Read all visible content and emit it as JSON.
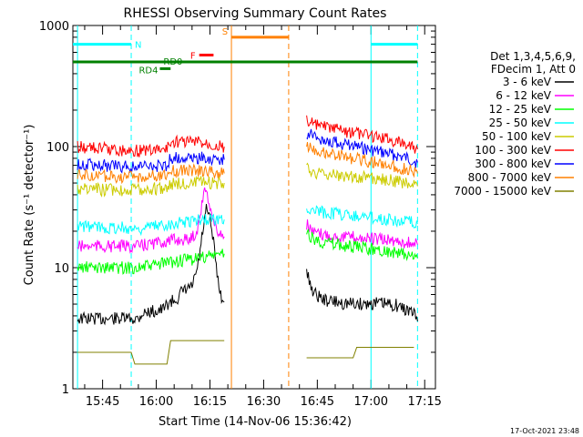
{
  "chart_data": {
    "type": "line",
    "title": "RHESSI Observing Summary Count Rates",
    "xlabel": "Start Time (14-Nov-06 15:36:42)",
    "ylabel": "Count Rate (s⁻¹ detector⁻¹)",
    "yscale": "log",
    "ylim": [
      1,
      1000
    ],
    "xlim_minutes_utc": [
      "15:36:42",
      "17:18:00"
    ],
    "x_ticks": [
      "15:45",
      "16:00",
      "16:15",
      "16:30",
      "16:45",
      "17:00",
      "17:15"
    ],
    "y_ticks": [
      "1",
      "10",
      "100",
      "1000"
    ],
    "legend_header": [
      "Det 1,3,4,5,6,9,",
      "FDecim 1, Att 0"
    ],
    "legend_position": "right",
    "series": [
      {
        "name": "3 - 6 keV",
        "color": "#000000",
        "segments": [
          {
            "x": [
              "15:38",
              "15:55",
              "15:56",
              "16:02",
              "16:03",
              "16:06",
              "16:07",
              "16:10",
              "16:11",
              "16:12",
              "16:13",
              "16:14",
              "16:15",
              "16:16",
              "16:17",
              "16:18",
              "16:19"
            ],
            "y": [
              3.8,
              3.8,
              4.2,
              4.5,
              5.0,
              5.6,
              6.2,
              7.0,
              8.5,
              12,
              20,
              30,
              25,
              16,
              9,
              6,
              5.2
            ]
          },
          {
            "x": [
              "16:42",
              "16:44",
              "16:47",
              "16:52",
              "16:57",
              "17:02",
              "17:07",
              "17:12",
              "17:13"
            ],
            "y": [
              9,
              6.2,
              5.4,
              5.1,
              5.0,
              5.1,
              4.9,
              4.2,
              3.6
            ]
          }
        ]
      },
      {
        "name": "6 - 12 keV",
        "color": "#ff00ff",
        "segments": [
          {
            "x": [
              "15:38",
              "15:55",
              "16:00",
              "16:03",
              "16:06",
              "16:09",
              "16:11",
              "16:12",
              "16:13",
              "16:14",
              "16:15",
              "16:16",
              "16:17",
              "16:18",
              "16:19"
            ],
            "y": [
              15,
              15,
              16,
              16.5,
              17,
              17,
              19,
              24,
              38,
              45,
              32,
              24,
              20,
              19,
              18
            ]
          },
          {
            "x": [
              "16:42",
              "16:44",
              "16:48",
              "16:53",
              "16:58",
              "17:03",
              "17:08",
              "17:13"
            ],
            "y": [
              23,
              19,
              18.5,
              18,
              17.5,
              17,
              16.5,
              15.5
            ]
          }
        ]
      },
      {
        "name": "12 - 25 keV",
        "color": "#00ff00",
        "segments": [
          {
            "x": [
              "15:38",
              "15:55",
              "16:00",
              "16:03",
              "16:08",
              "16:12",
              "16:15",
              "16:19"
            ],
            "y": [
              10,
              10,
              10.5,
              11,
              11.5,
              12,
              12.5,
              13
            ]
          },
          {
            "x": [
              "16:42",
              "16:44",
              "16:48",
              "16:53",
              "16:58",
              "17:03",
              "17:08",
              "17:13"
            ],
            "y": [
              20,
              17,
              16,
              15,
              14.5,
              14,
              13,
              12
            ]
          }
        ]
      },
      {
        "name": "25 - 50 keV",
        "color": "#00ffff",
        "segments": [
          {
            "x": [
              "15:38",
              "15:55",
              "16:00",
              "16:03",
              "16:08",
              "16:12",
              "16:15",
              "16:19"
            ],
            "y": [
              22,
              21,
              22,
              23,
              24,
              25,
              25,
              25
            ]
          },
          {
            "x": [
              "16:42",
              "16:45",
              "16:50",
              "16:55",
              "17:00",
              "17:05",
              "17:10",
              "17:13"
            ],
            "y": [
              31,
              29,
              28,
              27,
              26,
              25,
              24,
              23
            ]
          }
        ]
      },
      {
        "name": "50 - 100 keV",
        "color": "#cccc00",
        "segments": [
          {
            "x": [
              "15:38",
              "15:45",
              "15:55",
              "16:00",
              "16:03",
              "16:04",
              "16:08",
              "16:12",
              "16:15",
              "16:19"
            ],
            "y": [
              45,
              44,
              44,
              45,
              46,
              49,
              50,
              50,
              50,
              50
            ]
          },
          {
            "x": [
              "16:42",
              "16:45",
              "16:50",
              "16:55",
              "17:00",
              "17:05",
              "17:10",
              "17:13"
            ],
            "y": [
              68,
              60,
              58,
              57,
              55,
              53,
              50,
              47
            ]
          }
        ]
      },
      {
        "name": "100 - 300 keV",
        "color": "#ff0000",
        "segments": [
          {
            "x": [
              "15:38",
              "15:45",
              "15:55",
              "16:00",
              "16:03",
              "16:04",
              "16:08",
              "16:12",
              "16:15",
              "16:19"
            ],
            "y": [
              100,
              96,
              92,
              94,
              95,
              108,
              110,
              108,
              105,
              100
            ]
          },
          {
            "x": [
              "16:42",
              "16:45",
              "16:50",
              "16:55",
              "17:00",
              "17:05",
              "17:10",
              "17:13"
            ],
            "y": [
              165,
              148,
              138,
              130,
              122,
              115,
              105,
              95
            ]
          }
        ]
      },
      {
        "name": "300 - 800 keV",
        "color": "#0000ff",
        "segments": [
          {
            "x": [
              "15:38",
              "15:45",
              "15:55",
              "16:00",
              "16:03",
              "16:04",
              "16:08",
              "16:12",
              "16:15",
              "16:19"
            ],
            "y": [
              71,
              70,
              68,
              69,
              70,
              80,
              82,
              81,
              80,
              78
            ]
          },
          {
            "x": [
              "16:42",
              "16:45",
              "16:50",
              "16:55",
              "17:00",
              "17:05",
              "17:10",
              "17:13"
            ],
            "y": [
              130,
              118,
              108,
              100,
              93,
              87,
              80,
              74
            ]
          }
        ]
      },
      {
        "name": "800 - 7000 keV",
        "color": "#ff8000",
        "segments": [
          {
            "x": [
              "15:38",
              "15:45",
              "15:55",
              "16:00",
              "16:03",
              "16:04",
              "16:08",
              "16:12",
              "16:15",
              "16:19"
            ],
            "y": [
              58,
              57,
              56,
              57,
              57,
              62,
              64,
              63,
              62,
              60
            ]
          },
          {
            "x": [
              "16:42",
              "16:45",
              "16:50",
              "16:55",
              "17:00",
              "17:05",
              "17:10",
              "17:13"
            ],
            "y": [
              105,
              93,
              86,
              80,
              75,
              70,
              65,
              60
            ]
          }
        ]
      },
      {
        "name": "7000 - 15000 keV",
        "color": "#808000",
        "segments": [
          {
            "x": [
              "15:38",
              "15:53",
              "15:54",
              "16:03",
              "16:04",
              "16:19"
            ],
            "y": [
              2,
              2,
              1.6,
              1.6,
              2.5,
              2.5
            ]
          },
          {
            "x": [
              "16:42",
              "16:55",
              "16:56",
              "17:12"
            ],
            "y": [
              1.8,
              1.8,
              2.2,
              2.2
            ]
          }
        ]
      }
    ],
    "flags": [
      {
        "label": "N",
        "color": "#00ffff",
        "spans": [
          [
            "15:36:42",
            "15:53"
          ],
          [
            "17:00",
            "17:13"
          ]
        ],
        "level": 700
      },
      {
        "label": "S",
        "color": "#ff8000",
        "spans": [
          [
            "16:21",
            "16:37"
          ]
        ],
        "level": 800
      },
      {
        "label": "F",
        "color": "#ff0000",
        "spans": [
          [
            "16:12",
            "16:16"
          ]
        ],
        "level": 570
      },
      {
        "label": "RD0",
        "color": "#008000",
        "spans": [
          [
            "15:36:42",
            "17:13"
          ]
        ],
        "level": 500
      },
      {
        "label": "RD4",
        "color": "#008000",
        "spans": [
          [
            "16:01",
            "16:04"
          ]
        ],
        "level": 440
      }
    ],
    "vertical_markers": [
      {
        "time": "15:38",
        "color": "#00ffff",
        "style": "solid"
      },
      {
        "time": "15:53",
        "color": "#00ffff",
        "style": "dashed"
      },
      {
        "time": "16:21",
        "color": "#ff8000",
        "style": "solid"
      },
      {
        "time": "16:37",
        "color": "#ff8000",
        "style": "dashed"
      },
      {
        "time": "17:00",
        "color": "#00ffff",
        "style": "solid"
      },
      {
        "time": "17:13",
        "color": "#00ffff",
        "style": "dashed"
      }
    ]
  },
  "footer_date": "17-Oct-2021 23:48"
}
